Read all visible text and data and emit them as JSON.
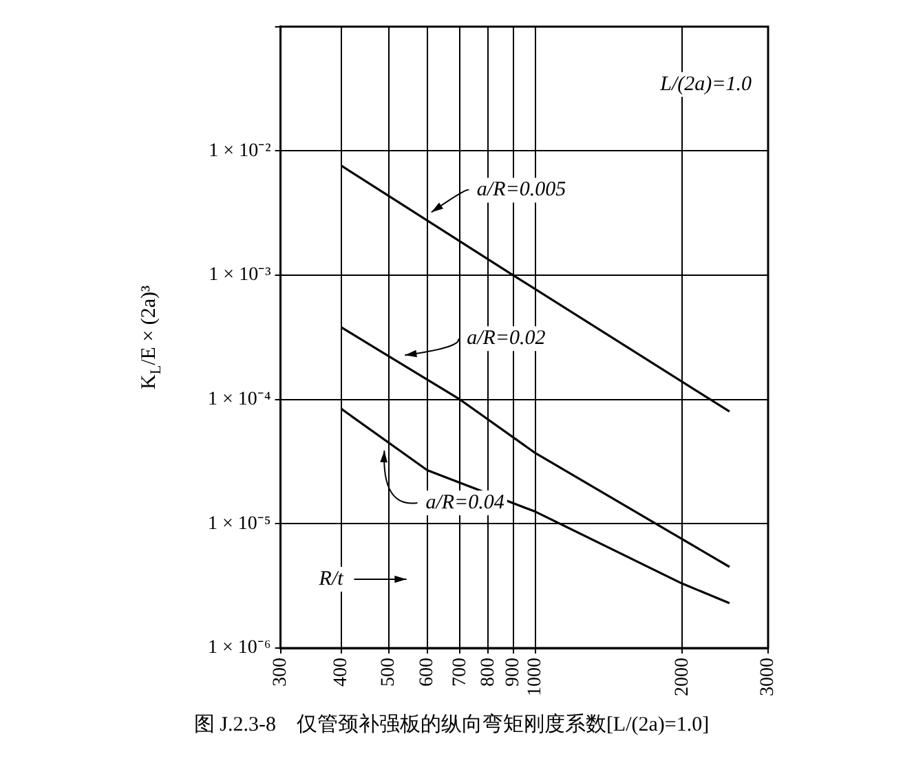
{
  "chart_data": {
    "type": "line",
    "title": "图 J.2.3-8　仅管颈补强板的纵向弯矩刚度系数[L/(2a)=1.0]",
    "xlabel": "R/t",
    "ylabel": "K$_{L}$/E × (2a)³",
    "log": "xy",
    "grid": true,
    "legend": "center",
    "marker": "none",
    "xlim": [
      300,
      3000
    ],
    "xticks": [
      300,
      400,
      500,
      600,
      700,
      800,
      900,
      1000,
      2000,
      3000
    ],
    "ylim": [
      1e-06,
      0.1
    ],
    "yticks": [
      {
        "value": 1e-06,
        "label": "1 × 10⁻⁶"
      },
      {
        "value": 1e-05,
        "label": "1 × 10⁻⁵"
      },
      {
        "value": 0.0001,
        "label": "1 × 10⁻⁴"
      },
      {
        "value": 0.001,
        "label": "1 × 10⁻³"
      },
      {
        "value": 0.01,
        "label": "1 × 10⁻²"
      },
      {
        "value": 0.1,
        "label": null
      }
    ],
    "annotations": [
      "L/(2a)=1.0"
    ],
    "series": [
      {
        "name": "a/R=0.005",
        "color": "#000000",
        "x": [
          400,
          900,
          2500
        ],
        "values": [
          0.0076,
          0.001,
          8e-05
        ]
      },
      {
        "name": "a/R=0.02",
        "color": "#000000",
        "x": [
          400,
          700,
          1000,
          2500
        ],
        "values": [
          0.00038,
          0.0001,
          3.7e-05,
          4.5e-06
        ]
      },
      {
        "name": "a/R=0.04",
        "color": "#000000",
        "x": [
          400,
          600,
          1000,
          2000,
          2500
        ],
        "values": [
          8.4e-05,
          2.7e-05,
          1.25e-05,
          3.3e-06,
          2.3e-06
        ]
      }
    ]
  }
}
